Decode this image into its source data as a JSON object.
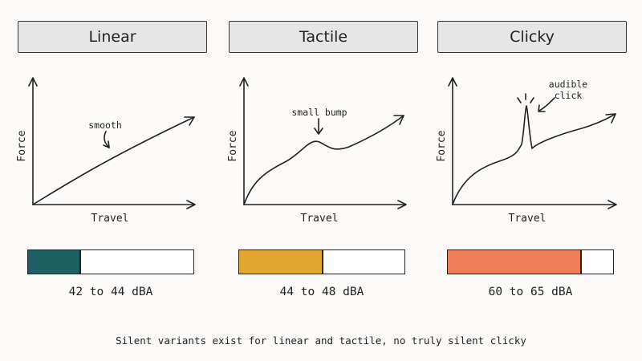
{
  "columns": [
    {
      "title": "Linear",
      "y_label": "Force",
      "x_label": "Travel",
      "annotation": "smooth",
      "sound_range": "42 to 44 dBA",
      "sound_fill": 0.32,
      "color": "#1e5f63"
    },
    {
      "title": "Tactile",
      "y_label": "Force",
      "x_label": "Travel",
      "annotation": "small bump",
      "sound_range": "44 to 48 dBA",
      "sound_fill": 0.51,
      "color": "#e3a730"
    },
    {
      "title": "Clicky",
      "y_label": "Force",
      "x_label": "Travel",
      "annotation_line1": "audible",
      "annotation_line2": "click",
      "sound_range": "60 to 65 dBA",
      "sound_fill": 0.81,
      "color": "#ee7f5a"
    }
  ],
  "footnote": "Silent variants exist for linear and tactile, no truly silent clicky"
}
